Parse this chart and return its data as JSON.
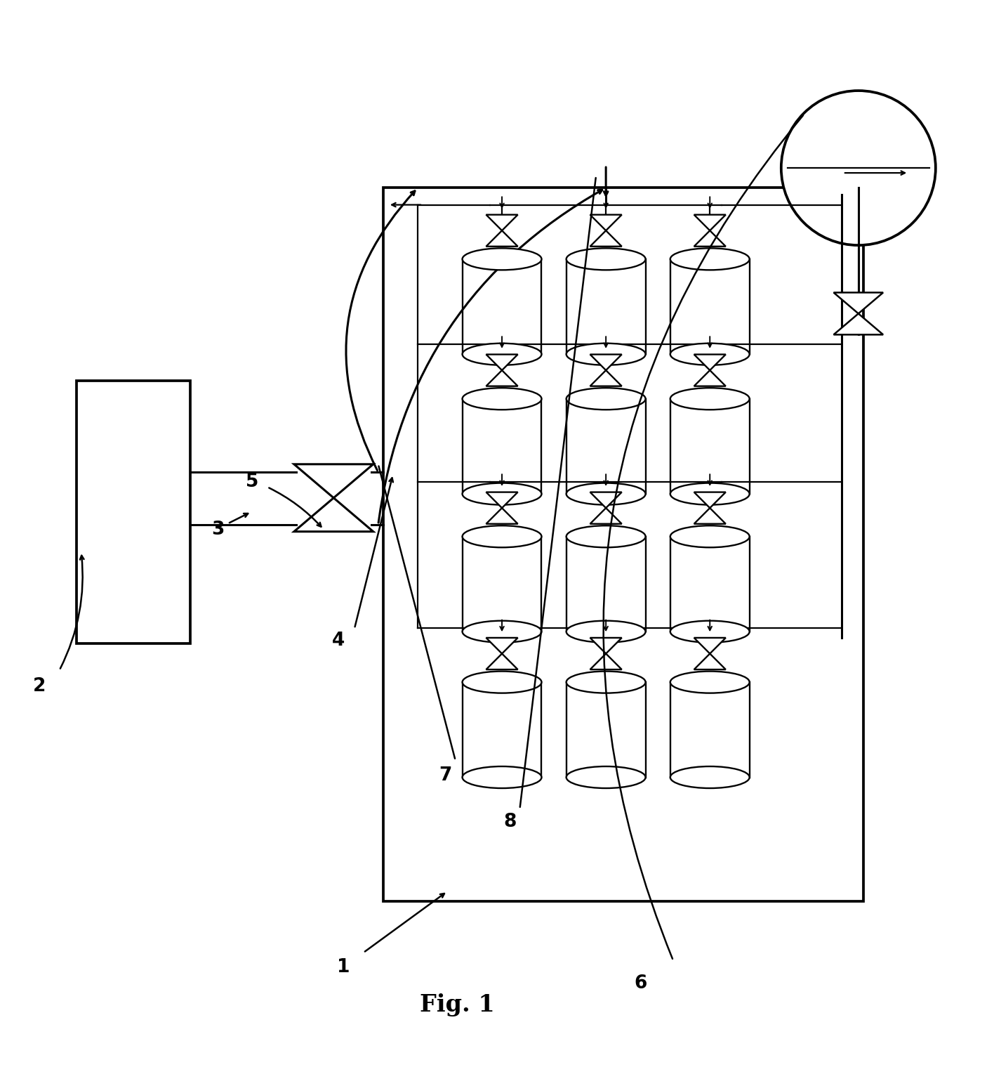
{
  "fig_width": 14.16,
  "fig_height": 15.36,
  "bg_color": "#ffffff",
  "line_color": "#000000",
  "title": "Fig. 1",
  "title_fontsize": 24,
  "title_fontweight": "bold"
}
